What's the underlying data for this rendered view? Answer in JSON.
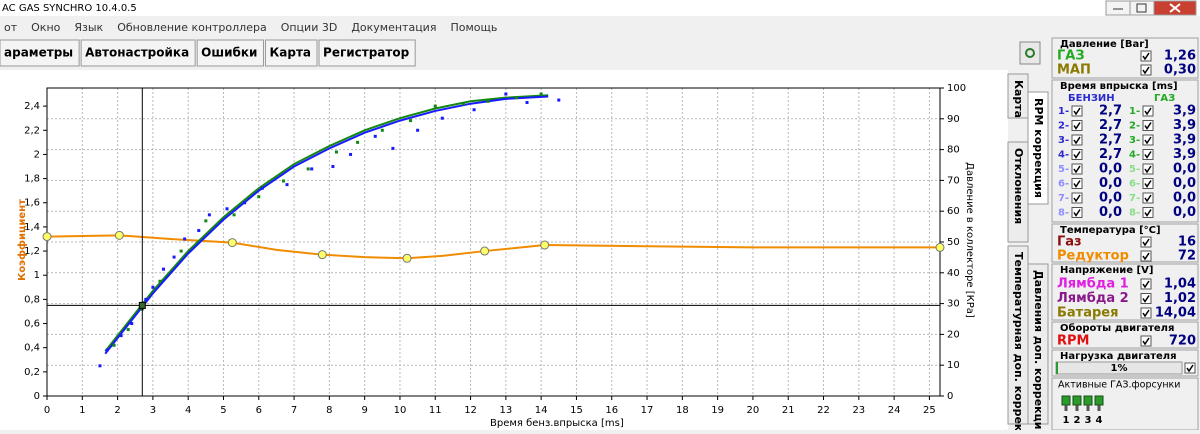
{
  "window": {
    "title": "AC GAS SYNCHRO  10.4.0.5",
    "menu": [
      "от",
      "Окно",
      "Язык",
      "Обновление контроллера",
      "Опции 3D",
      "Документация",
      "Помощь"
    ],
    "tabs": [
      "араметры",
      "Автонастройка",
      "Ошибки",
      "Карта",
      "Регистратор"
    ]
  },
  "side_tabs": [
    "Карта",
    "RPM коррекция",
    "Отклонения",
    "Давления доп. коррекция",
    "Температурная доп. коррекц"
  ],
  "panel": {
    "pressure": {
      "title": "Давление [Bar]",
      "rows": [
        {
          "label": "ГАЗ",
          "value": "1,26"
        },
        {
          "label": "МАП",
          "value": "0,30"
        }
      ]
    },
    "injection": {
      "title": "Время впрыска [ms]",
      "petrol_header": "БЕНЗИН",
      "gas_header": "ГАЗ",
      "petrol": [
        {
          "label": "1-",
          "value": "2,7"
        },
        {
          "label": "2-",
          "value": "2,7"
        },
        {
          "label": "3-",
          "value": "2,7"
        },
        {
          "label": "4-",
          "value": "2,7"
        },
        {
          "label": "5-",
          "value": "0,0"
        },
        {
          "label": "6-",
          "value": "0,0"
        },
        {
          "label": "7-",
          "value": "0,0"
        },
        {
          "label": "8-",
          "value": "0,0"
        }
      ],
      "gas": [
        {
          "label": "1-",
          "value": "3,9"
        },
        {
          "label": "2-",
          "value": "3,9"
        },
        {
          "label": "3-",
          "value": "3,9"
        },
        {
          "label": "4-",
          "value": "3,9"
        },
        {
          "label": "5-",
          "value": "0,0"
        },
        {
          "label": "6-",
          "value": "0,0"
        },
        {
          "label": "7-",
          "value": "0,0"
        },
        {
          "label": "8-",
          "value": "0,0"
        }
      ]
    },
    "temperature": {
      "title": "Температура [°C]",
      "rows": [
        {
          "label": "Газ",
          "value": "16"
        },
        {
          "label": "Редуктор",
          "value": "72"
        }
      ]
    },
    "voltage": {
      "title": "Напряжение [V]",
      "rows": [
        {
          "label": "Лямбда 1",
          "value": "1,04"
        },
        {
          "label": "Лямбда 2",
          "value": "1,02"
        },
        {
          "label": "Батарея",
          "value": "14,04"
        }
      ]
    },
    "rpm": {
      "title": "Обороты двигателя",
      "label": "RPM",
      "value": "720"
    },
    "load": {
      "title": "Нагрузка двигателя",
      "value": "1%"
    },
    "injectors": {
      "title": "Активные ГАЗ.форсунки",
      "labels": [
        "1",
        "2",
        "3",
        "4"
      ]
    }
  },
  "chart_data": {
    "type": "line",
    "x_label": "Время бенз.впрыска [ms]",
    "y_label": "Коэффициент",
    "y2_label": "Давление в коллекторе [КРа]",
    "xlim": [
      0,
      25.3
    ],
    "xticks": [
      0,
      1,
      2,
      3,
      4,
      5,
      6,
      7,
      8,
      9,
      10,
      11,
      12,
      13,
      14,
      15,
      16,
      17,
      18,
      19,
      20,
      21,
      22,
      23,
      24,
      25
    ],
    "ylim": [
      0,
      2.55
    ],
    "yticks": [
      0,
      {
        "value": 0.2,
        "label": "0,2"
      },
      {
        "value": 0.4,
        "label": "0,4"
      },
      {
        "value": 0.6,
        "label": "0,6"
      },
      {
        "value": 0.8,
        "label": "0,8"
      },
      1,
      {
        "value": 1.2,
        "label": "1,2"
      },
      {
        "value": 1.4,
        "label": "1,4"
      },
      {
        "value": 1.6,
        "label": "1,6"
      },
      {
        "value": 1.8,
        "label": "1,8"
      },
      2,
      {
        "value": 2.2,
        "label": "2,2"
      },
      {
        "value": 2.4,
        "label": "2,4"
      }
    ],
    "y2lim": [
      0,
      100
    ],
    "y2ticks": [
      0,
      10,
      20,
      30,
      40,
      50,
      60,
      70,
      80,
      90,
      100
    ],
    "grid": true,
    "cursor": {
      "x": 2.7,
      "y": 0.75
    },
    "series": [
      {
        "type": "line",
        "color": "#f08c00",
        "x": [
          0,
          2.05,
          3.5,
          5.25,
          6.5,
          7.8,
          9,
          10.2,
          11.2,
          12.4,
          14.1,
          17,
          20,
          25.3
        ],
        "values": [
          1.32,
          1.33,
          1.3,
          1.27,
          1.21,
          1.17,
          1.15,
          1.14,
          1.16,
          1.2,
          1.25,
          1.24,
          1.23,
          1.23
        ]
      },
      {
        "type": "scatter",
        "marker": "circle",
        "color": "#ffff66",
        "x": [
          0,
          2.05,
          5.25,
          7.8,
          10.2,
          12.4,
          14.1,
          25.3
        ],
        "values": [
          1.32,
          1.33,
          1.27,
          1.17,
          1.14,
          1.2,
          1.25,
          1.23
        ]
      },
      {
        "type": "line",
        "color": "#118811",
        "x": [
          1.65,
          2,
          3,
          4,
          5,
          6,
          7,
          8,
          9,
          10,
          11,
          12,
          13,
          14.2
        ],
        "values": [
          0.37,
          0.5,
          0.87,
          1.2,
          1.48,
          1.72,
          1.92,
          2.07,
          2.2,
          2.3,
          2.38,
          2.44,
          2.47,
          2.49
        ]
      },
      {
        "type": "line",
        "color": "#1a1aff",
        "x": [
          1.65,
          2,
          3,
          4,
          5,
          6,
          7,
          8,
          9,
          10,
          11,
          12,
          13,
          14.2
        ],
        "values": [
          0.35,
          0.48,
          0.85,
          1.18,
          1.46,
          1.7,
          1.9,
          2.05,
          2.18,
          2.28,
          2.36,
          2.42,
          2.46,
          2.48
        ]
      },
      {
        "type": "scatter",
        "marker": "dot",
        "color": "#1a1aff",
        "x": [
          1.5,
          1.7,
          2.1,
          2.4,
          2.8,
          3.0,
          3.3,
          3.6,
          3.9,
          4.3,
          4.6,
          5.1,
          5.6,
          6.1,
          6.8,
          7.5,
          8.1,
          8.6,
          9.3,
          9.8,
          10.5,
          11.2,
          12.1,
          13.0,
          13.6,
          14.5
        ],
        "values": [
          0.25,
          0.38,
          0.5,
          0.6,
          0.8,
          0.9,
          1.05,
          1.15,
          1.3,
          1.37,
          1.5,
          1.55,
          1.6,
          1.72,
          1.75,
          1.88,
          1.9,
          2.0,
          2.15,
          2.05,
          2.2,
          2.3,
          2.37,
          2.5,
          2.43,
          2.45
        ]
      },
      {
        "type": "scatter",
        "marker": "dot",
        "color": "#118811",
        "x": [
          1.9,
          2.3,
          2.7,
          3.2,
          3.8,
          4.5,
          5.3,
          6.0,
          6.7,
          7.4,
          8.2,
          8.8,
          9.5,
          10.3,
          11.0,
          11.8,
          12.5,
          13.3,
          14.0
        ],
        "values": [
          0.42,
          0.55,
          0.72,
          0.95,
          1.2,
          1.45,
          1.5,
          1.65,
          1.78,
          1.88,
          2.02,
          2.1,
          2.2,
          2.28,
          2.4,
          2.42,
          2.44,
          2.47,
          2.5
        ]
      }
    ]
  }
}
